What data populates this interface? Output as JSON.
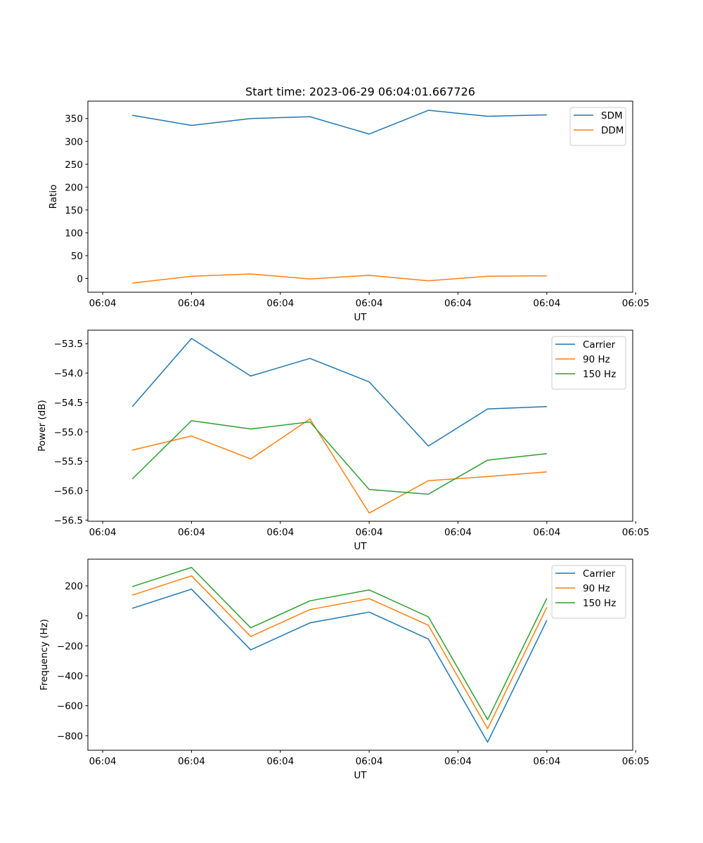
{
  "chart_data": [
    {
      "type": "line",
      "title": "Start time: 2023-06-29 06:04:01.667726",
      "xlabel": "UT",
      "ylabel": "Ratio",
      "x": [
        1,
        2,
        3,
        4,
        5,
        6,
        7,
        8
      ],
      "xlim": [
        0.25,
        9.45
      ],
      "ylim": [
        -30,
        388
      ],
      "xticks": [
        0.5,
        2,
        3.5,
        5,
        6.5,
        8,
        9.5
      ],
      "xticklabels": [
        "06:04",
        "06:04",
        "06:04",
        "06:04",
        "06:04",
        "06:04",
        "06:05"
      ],
      "yticks": [
        0,
        50,
        100,
        150,
        200,
        250,
        300,
        350
      ],
      "yticklabels": [
        "0",
        "50",
        "100",
        "150",
        "200",
        "250",
        "300",
        "350"
      ],
      "legend_position": "top-right",
      "series": [
        {
          "name": "SDM",
          "color": "#1f77b4",
          "values": [
            357,
            335,
            350,
            354,
            316,
            368,
            355,
            358
          ]
        },
        {
          "name": "DDM",
          "color": "#ff7f0e",
          "values": [
            -10,
            5,
            10,
            -1,
            7,
            -5,
            5,
            6
          ]
        }
      ]
    },
    {
      "type": "line",
      "title": "",
      "xlabel": "UT",
      "ylabel": "Power (dB)",
      "x": [
        1,
        2,
        3,
        4,
        5,
        6,
        7,
        8
      ],
      "xlim": [
        0.25,
        9.45
      ],
      "ylim": [
        -56.52,
        -53.27
      ],
      "xticks": [
        0.5,
        2,
        3.5,
        5,
        6.5,
        8,
        9.5
      ],
      "xticklabels": [
        "06:04",
        "06:04",
        "06:04",
        "06:04",
        "06:04",
        "06:04",
        "06:05"
      ],
      "yticks": [
        -56.5,
        -56.0,
        -55.5,
        -55.0,
        -54.5,
        -54.0,
        -53.5
      ],
      "yticklabels": [
        "−56.5",
        "−56.0",
        "−55.5",
        "−55.0",
        "−54.5",
        "−54.0",
        "−53.5"
      ],
      "legend_position": "top-right",
      "series": [
        {
          "name": "Carrier",
          "color": "#1f77b4",
          "values": [
            -54.57,
            -53.41,
            -54.05,
            -53.75,
            -54.15,
            -55.24,
            -54.61,
            -54.57
          ]
        },
        {
          "name": "90 Hz",
          "color": "#ff7f0e",
          "values": [
            -55.31,
            -55.07,
            -55.46,
            -54.78,
            -56.38,
            -55.83,
            -55.76,
            -55.68
          ]
        },
        {
          "name": "150 Hz",
          "color": "#2ca02c",
          "values": [
            -55.8,
            -54.81,
            -54.95,
            -54.83,
            -55.98,
            -56.06,
            -55.48,
            -55.37
          ]
        }
      ]
    },
    {
      "type": "line",
      "title": "",
      "xlabel": "UT",
      "ylabel": "Frequency (Hz)",
      "x": [
        1,
        2,
        3,
        4,
        5,
        6,
        7,
        8
      ],
      "xlim": [
        0.25,
        9.45
      ],
      "ylim": [
        -897,
        378
      ],
      "xticks": [
        0.5,
        2,
        3.5,
        5,
        6.5,
        8,
        9.5
      ],
      "xticklabels": [
        "06:04",
        "06:04",
        "06:04",
        "06:04",
        "06:04",
        "06:04",
        "06:05"
      ],
      "yticks": [
        -800,
        -600,
        -400,
        -200,
        0,
        200
      ],
      "yticklabels": [
        "−800",
        "−600",
        "−400",
        "−200",
        "0",
        "200"
      ],
      "legend_position": "top-right",
      "series": [
        {
          "name": "Carrier",
          "color": "#1f77b4",
          "values": [
            50,
            178,
            -227,
            -47,
            25,
            -155,
            -843,
            -30
          ]
        },
        {
          "name": "90 Hz",
          "color": "#ff7f0e",
          "values": [
            138,
            267,
            -138,
            42,
            115,
            -63,
            -753,
            57
          ]
        },
        {
          "name": "150 Hz",
          "color": "#2ca02c",
          "values": [
            195,
            323,
            -80,
            100,
            173,
            -7,
            -693,
            117
          ]
        }
      ]
    }
  ]
}
